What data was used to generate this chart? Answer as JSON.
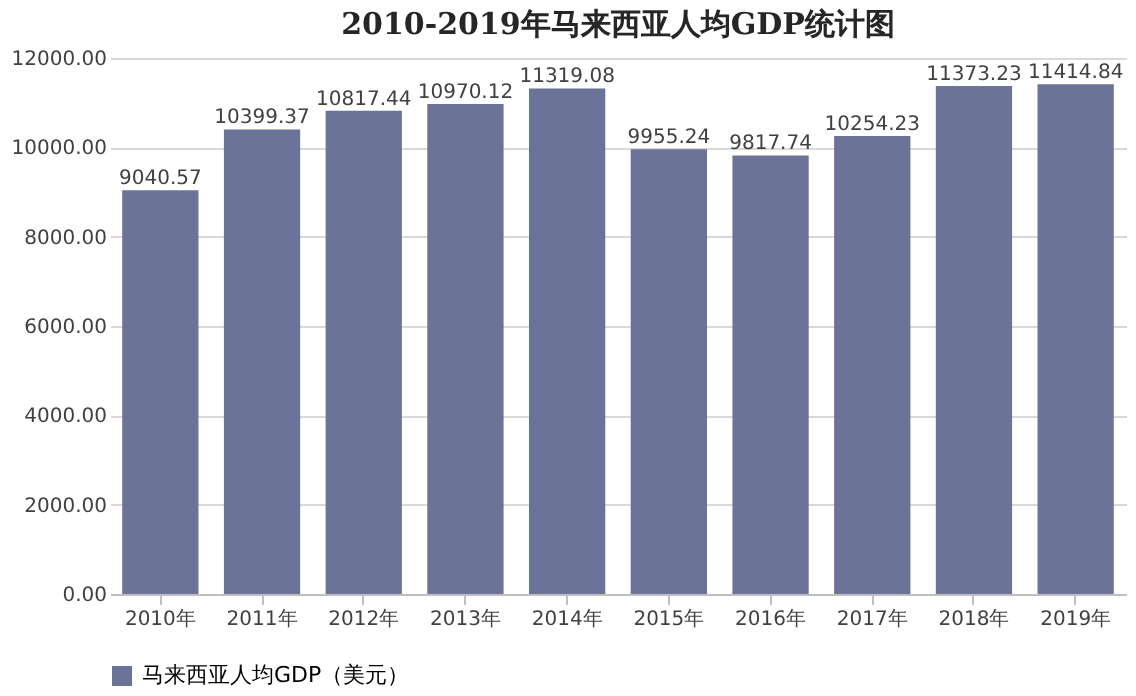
{
  "chart_data": {
    "type": "bar",
    "title": "2010-2019年马来西亚人均GDP统计图",
    "categories": [
      "2010年",
      "2011年",
      "2012年",
      "2013年",
      "2014年",
      "2015年",
      "2016年",
      "2017年",
      "2018年",
      "2019年"
    ],
    "series": [
      {
        "name": "马来西亚人均GDP（美元）",
        "color": "#6b7398",
        "values": [
          9040.57,
          10399.37,
          10817.44,
          10970.12,
          11319.08,
          9955.24,
          9817.74,
          10254.23,
          11373.23,
          11414.84
        ]
      }
    ],
    "ylim": [
      0,
      12000
    ],
    "yticks": [
      {
        "value": 0,
        "label": "0.00"
      },
      {
        "value": 2000,
        "label": "2000.00"
      },
      {
        "value": 4000,
        "label": "4000.00"
      },
      {
        "value": 6000,
        "label": "6000.00"
      },
      {
        "value": 8000,
        "label": "8000.00"
      },
      {
        "value": 10000,
        "label": "10000.00"
      },
      {
        "value": 12000,
        "label": "12000.00"
      }
    ],
    "grid": "y",
    "legend": "bottom",
    "data_labels": true
  }
}
